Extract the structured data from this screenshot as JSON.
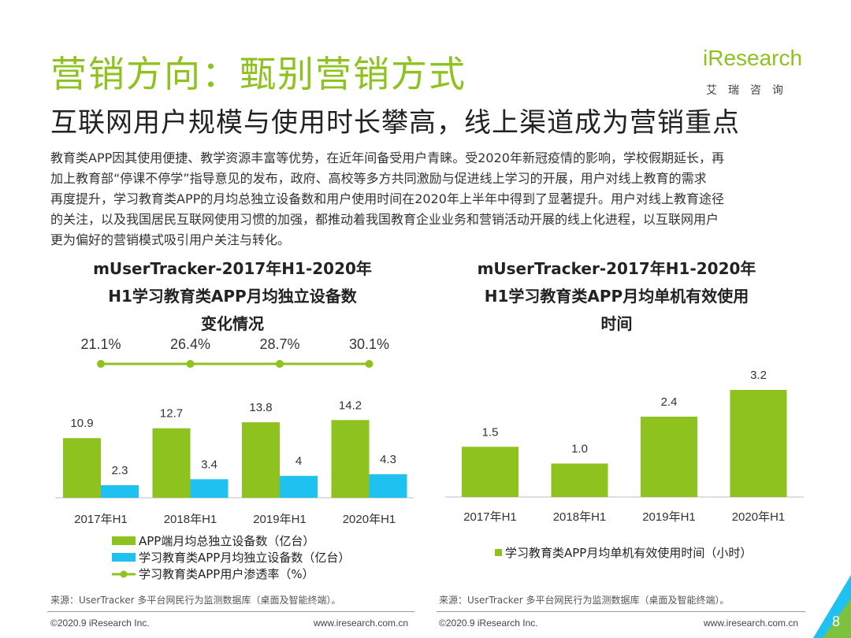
{
  "header": {
    "title": "营销方向：甄别营销方式",
    "subtitle": "互联网用户规模与使用时长攀高，线上渠道成为营销重点",
    "logo_main": "iResearch",
    "logo_sub": "艾瑞咨询"
  },
  "paragraph": [
    "教育类APP因其使用便捷、教学资源丰富等优势，在近年间备受用户青睐。受2020年新冠疫情的影响，学校假期延长，再",
    "加上教育部“停课不停学”指导意见的发布，政府、高校等多方共同激励与促进线上学习的开展，用户对线上教育的需求",
    "再度提升，学习教育类APP的月均总独立设备数和用户使用时间在2020年上半年中得到了显著提升。用户对线上教育途径",
    "的关注，以及我国居民互联网使用习惯的加强，都推动着我国教育企业业务和营销活动开展的线上化进程，以互联网用户",
    "更为偏好的营销模式吸引用户关注与转化。"
  ],
  "chart_data": [
    {
      "type": "bar",
      "title_lines": [
        "mUserTracker-2017年H1-2020年",
        "H1学习教育类APP月均独立设备数",
        "变化情况"
      ],
      "categories": [
        "2017年H1",
        "2018年H1",
        "2019年H1",
        "2020年H1"
      ],
      "series": [
        {
          "name": "APP端月均总独立设备数（亿台）",
          "values": [
            10.9,
            12.7,
            13.8,
            14.2
          ],
          "color": "#8dc21f"
        },
        {
          "name": "学习教育类APP月均独立设备数（亿台）",
          "values": [
            2.3,
            3.4,
            4.0,
            4.3
          ],
          "color": "#1fc1f0"
        }
      ],
      "line_series": {
        "name": "学习教育类APP用户渗透率（%）",
        "values": [
          21.1,
          26.4,
          28.7,
          30.1
        ],
        "labels": [
          "21.1%",
          "26.4%",
          "28.7%",
          "30.1%"
        ],
        "color": "#8dc21f"
      },
      "ylim": [
        0,
        16
      ],
      "source": "来源：UserTracker 多平台网民行为监测数据库（桌面及智能终端）。"
    },
    {
      "type": "bar",
      "title_lines": [
        "mUserTracker-2017年H1-2020年",
        "H1学习教育类APP月均单机有效使用",
        "时间"
      ],
      "categories": [
        "2017年H1",
        "2018年H1",
        "2019年H1",
        "2020年H1"
      ],
      "series": [
        {
          "name": "学习教育类APP月均单机有效使用时间（小时）",
          "values": [
            1.5,
            1.0,
            2.4,
            3.2
          ],
          "color": "#8dc21f"
        }
      ],
      "ylim": [
        0,
        3.6
      ],
      "source": "来源：UserTracker 多平台网民行为监测数据库（桌面及智能终端）。"
    }
  ],
  "footer": {
    "left_copyright": "©2020.9 iResearch Inc.",
    "left_url": "www.iresearch.com.cn",
    "right_copyright": "©2020.9 iResearch Inc.",
    "right_url": "www.iresearch.com.cn",
    "page": "8"
  },
  "colors": {
    "green": "#8dc21f",
    "blue": "#1fc1f0",
    "corner": "#1fc1f0"
  }
}
